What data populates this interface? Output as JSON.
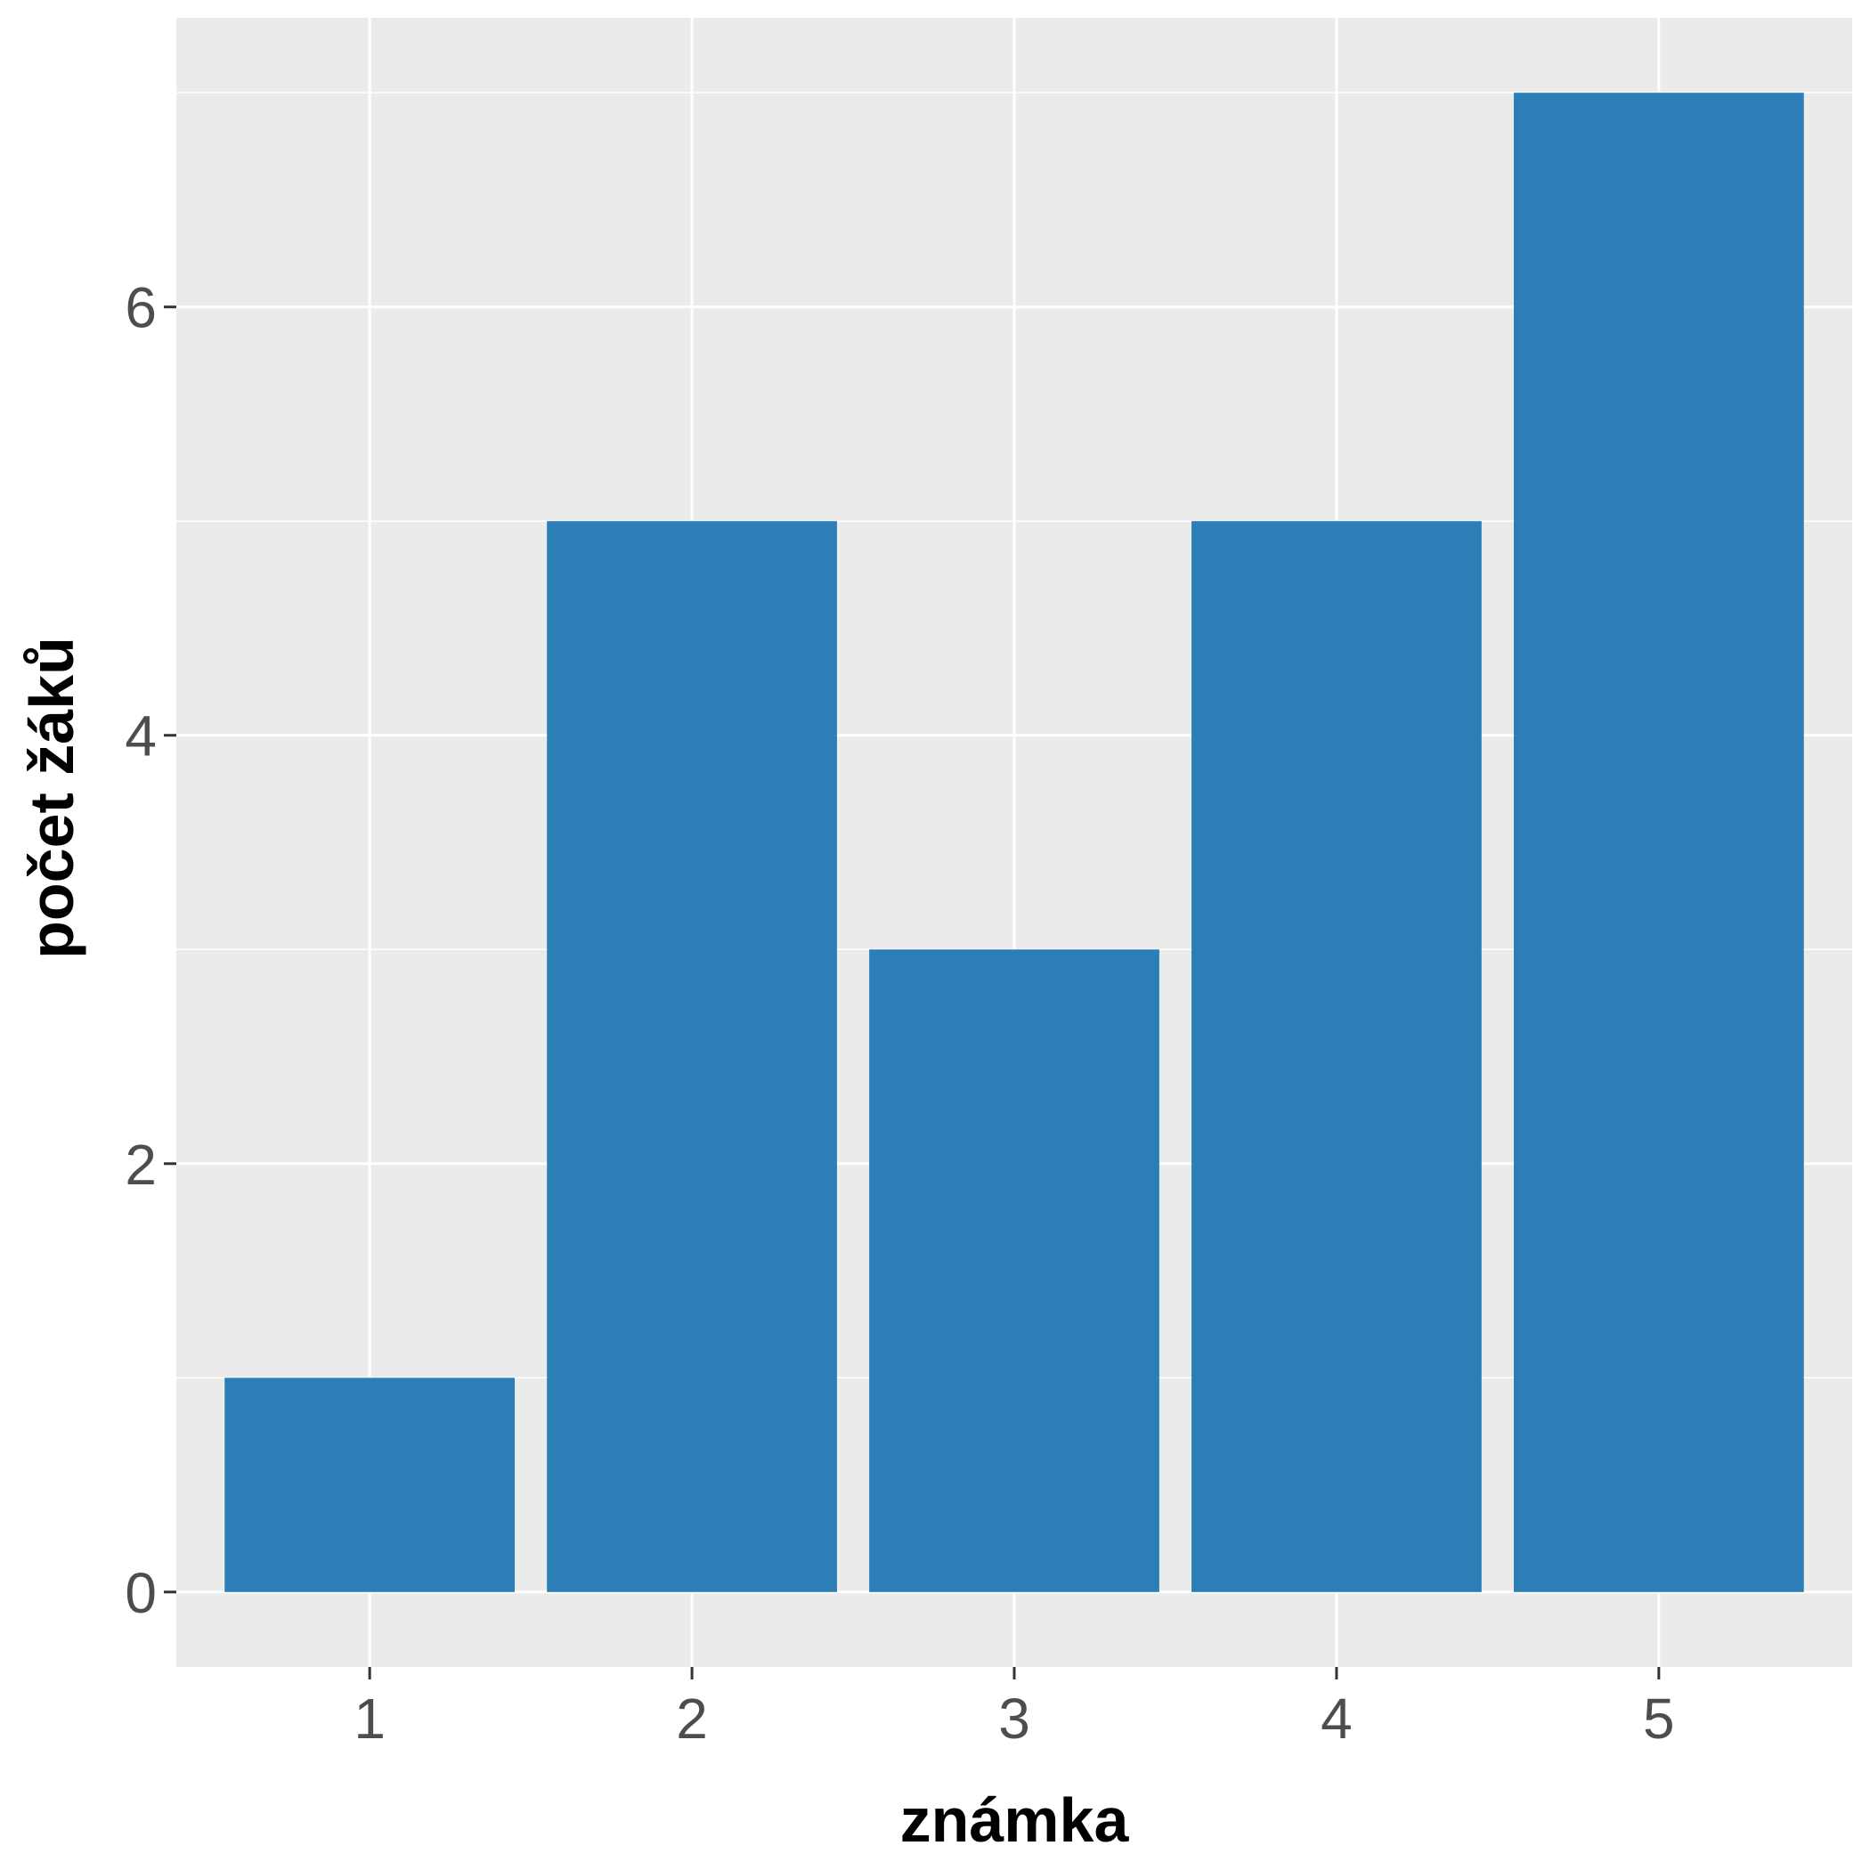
{
  "chart_data": {
    "type": "bar",
    "categories": [
      "1",
      "2",
      "3",
      "4",
      "5"
    ],
    "values": [
      1,
      5,
      3,
      5,
      7
    ],
    "xlabel": "známka",
    "ylabel": "počet žáků",
    "ylim": [
      -0.35,
      7.35
    ],
    "yticks": [
      "0",
      "2",
      "4",
      "6"
    ],
    "grid": true,
    "legend": "none"
  },
  "colors": {
    "bar": "#2b7eb6",
    "panel": "#ebebeb",
    "grid": "#ffffff",
    "tick_text": "#4d4d4d",
    "tick_mark": "#333333",
    "title_text": "#000000"
  }
}
